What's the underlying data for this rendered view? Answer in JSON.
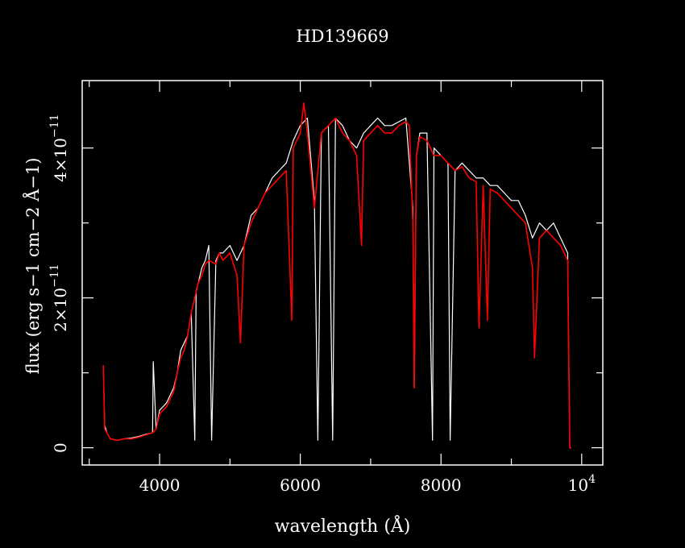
{
  "chart_data": {
    "type": "line",
    "title": "HD139669",
    "xlabel": "wavelength (Å)",
    "ylabel": "flux (erg s−1 cm−2 Å−1)",
    "xlim": [
      2900,
      10300
    ],
    "ylim": [
      -2.3e-12,
      4.9e-11
    ],
    "x_ticks": [
      {
        "value": 4000,
        "label": "4000"
      },
      {
        "value": 6000,
        "label": "6000"
      },
      {
        "value": 8000,
        "label": "8000"
      },
      {
        "value": 10000,
        "label": "10",
        "sup": "4"
      }
    ],
    "y_ticks": [
      {
        "value": 0,
        "label": "0"
      },
      {
        "value": 2e-11,
        "label": "2×10",
        "sup": "−11"
      },
      {
        "value": 4e-11,
        "label": "4×10",
        "sup": "−11"
      }
    ],
    "colors": {
      "background": "#000000",
      "axes": "#ffffff",
      "series_white": "#ffffff",
      "series_red": "#ff0000"
    },
    "series": [
      {
        "color": "#ffffff",
        "x": [
          3200,
          3220,
          3250,
          3300,
          3400,
          3500,
          3600,
          3700,
          3800,
          3900,
          3910,
          3950,
          4000,
          4050,
          4100,
          4150,
          4200,
          4250,
          4300,
          4350,
          4400,
          4450,
          4500,
          4520,
          4550,
          4600,
          4650,
          4700,
          4740,
          4800,
          4850,
          4900,
          5000,
          5100,
          5200,
          5300,
          5400,
          5500,
          5600,
          5700,
          5800,
          5900,
          6000,
          6100,
          6200,
          6250,
          6300,
          6400,
          6460,
          6500,
          6600,
          6700,
          6800,
          6900,
          7000,
          7100,
          7200,
          7300,
          7400,
          7500,
          7600,
          7620,
          7650,
          7700,
          7800,
          7880,
          7900,
          8000,
          8100,
          8130,
          8200,
          8300,
          8400,
          8500,
          8600,
          8700,
          8800,
          8900,
          9000,
          9100,
          9200,
          9300,
          9400,
          9500,
          9600,
          9700,
          9800,
          9830,
          9850
        ],
        "y": [
          1.1e-11,
          3e-12,
          2e-12,
          1.2e-12,
          1e-12,
          1.2e-12,
          1.3e-12,
          1.5e-12,
          1.8e-12,
          2e-12,
          1.15e-11,
          2.5e-12,
          5e-12,
          5.5e-12,
          6e-12,
          7e-12,
          8e-12,
          1e-11,
          1.3e-11,
          1.4e-11,
          1.5e-11,
          1.8e-11,
          1e-12,
          2.1e-11,
          2.2e-11,
          2.4e-11,
          2.5e-11,
          2.7e-11,
          1e-12,
          2.5e-11,
          2.6e-11,
          2.6e-11,
          2.7e-11,
          2.5e-11,
          2.7e-11,
          3.1e-11,
          3.2e-11,
          3.4e-11,
          3.6e-11,
          3.7e-11,
          3.8e-11,
          4.1e-11,
          4.3e-11,
          4.4e-11,
          3.3e-11,
          1e-12,
          4.2e-11,
          4.3e-11,
          1e-12,
          4.4e-11,
          4.3e-11,
          4.1e-11,
          4e-11,
          4.2e-11,
          4.3e-11,
          4.4e-11,
          4.3e-11,
          4.3e-11,
          4.35e-11,
          4.4e-11,
          3.2e-11,
          8e-12,
          3.9e-11,
          4.2e-11,
          4.2e-11,
          1e-12,
          4e-11,
          3.9e-11,
          3.8e-11,
          1e-12,
          3.7e-11,
          3.8e-11,
          3.7e-11,
          3.6e-11,
          3.6e-11,
          3.5e-11,
          3.5e-11,
          3.4e-11,
          3.3e-11,
          3.3e-11,
          3.1e-11,
          2.8e-11,
          3e-11,
          2.9e-11,
          3e-11,
          2.8e-11,
          2.6e-11,
          0.0,
          0.0
        ]
      },
      {
        "color": "#ff0000",
        "x": [
          3200,
          3220,
          3250,
          3300,
          3400,
          3500,
          3600,
          3700,
          3800,
          3900,
          3950,
          4000,
          4050,
          4100,
          4150,
          4200,
          4250,
          4300,
          4350,
          4400,
          4450,
          4500,
          4550,
          4600,
          4650,
          4700,
          4800,
          4850,
          4900,
          5000,
          5100,
          5150,
          5200,
          5300,
          5400,
          5500,
          5600,
          5700,
          5800,
          5880,
          5900,
          6000,
          6050,
          6100,
          6200,
          6300,
          6400,
          6500,
          6600,
          6700,
          6800,
          6870,
          6900,
          7000,
          7100,
          7200,
          7300,
          7400,
          7500,
          7550,
          7600,
          7620,
          7650,
          7700,
          7800,
          7900,
          8000,
          8100,
          8200,
          8300,
          8400,
          8500,
          8540,
          8600,
          8660,
          8700,
          8800,
          8900,
          9000,
          9100,
          9200,
          9300,
          9330,
          9400,
          9500,
          9600,
          9700,
          9800,
          9830,
          9850
        ],
        "y": [
          1.1e-11,
          2.5e-12,
          2e-12,
          1.2e-12,
          1e-12,
          1.2e-12,
          1.2e-12,
          1.4e-12,
          1.7e-12,
          2e-12,
          2.5e-12,
          4.5e-12,
          5e-12,
          5.5e-12,
          6.5e-12,
          7.5e-12,
          1e-11,
          1.2e-11,
          1.3e-11,
          1.5e-11,
          1.8e-11,
          2e-11,
          2.2e-11,
          2.3e-11,
          2.45e-11,
          2.5e-11,
          2.45e-11,
          2.6e-11,
          2.5e-11,
          2.6e-11,
          2.3e-11,
          1.4e-11,
          2.7e-11,
          3e-11,
          3.2e-11,
          3.4e-11,
          3.5e-11,
          3.6e-11,
          3.7e-11,
          1.7e-11,
          4e-11,
          4.2e-11,
          4.6e-11,
          4.2e-11,
          3.2e-11,
          4.2e-11,
          4.3e-11,
          4.4e-11,
          4.2e-11,
          4.1e-11,
          3.9e-11,
          2.7e-11,
          4.1e-11,
          4.2e-11,
          4.3e-11,
          4.2e-11,
          4.2e-11,
          4.3e-11,
          4.35e-11,
          4.3e-11,
          3e-11,
          8e-12,
          3.9e-11,
          4.15e-11,
          4.1e-11,
          3.9e-11,
          3.9e-11,
          3.8e-11,
          3.7e-11,
          3.75e-11,
          3.6e-11,
          3.55e-11,
          1.6e-11,
          3.5e-11,
          1.7e-11,
          3.45e-11,
          3.4e-11,
          3.3e-11,
          3.2e-11,
          3.1e-11,
          3e-11,
          2.4e-11,
          1.2e-11,
          2.8e-11,
          2.9e-11,
          2.8e-11,
          2.7e-11,
          2.5e-11,
          0.0,
          0.0
        ]
      }
    ]
  }
}
